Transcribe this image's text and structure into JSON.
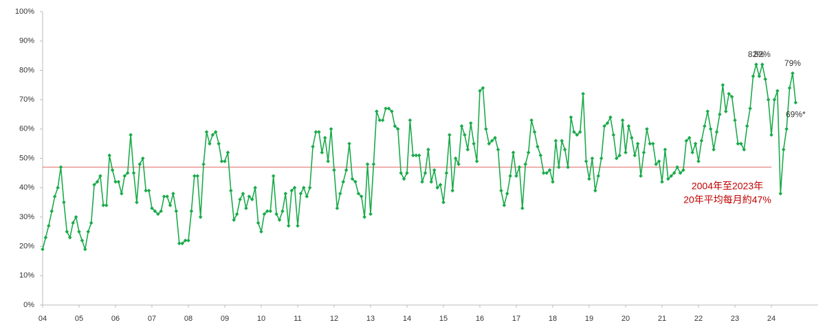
{
  "chart_data": {
    "type": "line",
    "categories": [
      "04",
      null,
      null,
      null,
      null,
      null,
      null,
      null,
      null,
      null,
      null,
      null,
      "05",
      null,
      null,
      null,
      null,
      null,
      null,
      null,
      null,
      null,
      null,
      null,
      "06",
      null,
      null,
      null,
      null,
      null,
      null,
      null,
      null,
      null,
      null,
      null,
      "07",
      null,
      null,
      null,
      null,
      null,
      null,
      null,
      null,
      null,
      null,
      null,
      "08",
      null,
      null,
      null,
      null,
      null,
      null,
      null,
      null,
      null,
      null,
      null,
      "09",
      null,
      null,
      null,
      null,
      null,
      null,
      null,
      null,
      null,
      null,
      null,
      "10",
      null,
      null,
      null,
      null,
      null,
      null,
      null,
      null,
      null,
      null,
      null,
      "11",
      null,
      null,
      null,
      null,
      null,
      null,
      null,
      null,
      null,
      null,
      null,
      "12",
      null,
      null,
      null,
      null,
      null,
      null,
      null,
      null,
      null,
      null,
      null,
      "13",
      null,
      null,
      null,
      null,
      null,
      null,
      null,
      null,
      null,
      null,
      null,
      "14",
      null,
      null,
      null,
      null,
      null,
      null,
      null,
      null,
      null,
      null,
      null,
      "15",
      null,
      null,
      null,
      null,
      null,
      null,
      null,
      null,
      null,
      null,
      null,
      "16",
      null,
      null,
      null,
      null,
      null,
      null,
      null,
      null,
      null,
      null,
      null,
      "17",
      null,
      null,
      null,
      null,
      null,
      null,
      null,
      null,
      null,
      null,
      null,
      "18",
      null,
      null,
      null,
      null,
      null,
      null,
      null,
      null,
      null,
      null,
      null,
      "19",
      null,
      null,
      null,
      null,
      null,
      null,
      null,
      null,
      null,
      null,
      null,
      "20",
      null,
      null,
      null,
      null,
      null,
      null,
      null,
      null,
      null,
      null,
      null,
      "21",
      null,
      null,
      null,
      null,
      null,
      null,
      null,
      null,
      null,
      null,
      null,
      "22",
      null,
      null,
      null,
      null,
      null,
      null,
      null,
      null,
      null,
      null,
      null,
      "23",
      null,
      null,
      null,
      null,
      null,
      null,
      null,
      null,
      null,
      null,
      null,
      "24",
      null,
      null,
      null,
      null,
      null,
      null,
      null,
      null
    ],
    "values": [
      19,
      23,
      27,
      32,
      37,
      40,
      47,
      35,
      25,
      23,
      28,
      30,
      25,
      22,
      19,
      25,
      28,
      41,
      42,
      44,
      34,
      34,
      51,
      46,
      42,
      42,
      38,
      44,
      45,
      58,
      45,
      35,
      48,
      50,
      39,
      39,
      33,
      32,
      31,
      32,
      37,
      37,
      34,
      38,
      32,
      21,
      21,
      22,
      22,
      32,
      44,
      44,
      30,
      48,
      59,
      55,
      58,
      59,
      55,
      49,
      49,
      52,
      39,
      29,
      31,
      36,
      38,
      33,
      37,
      36,
      40,
      28,
      25,
      31,
      32,
      32,
      44,
      31,
      29,
      32,
      38,
      27,
      39,
      40,
      27,
      38,
      40,
      37,
      40,
      54,
      59,
      59,
      52,
      57,
      49,
      60,
      46,
      33,
      38,
      42,
      46,
      55,
      43,
      42,
      38,
      37,
      30,
      48,
      31,
      48,
      66,
      63,
      63,
      67,
      67,
      66,
      61,
      60,
      45,
      43,
      45,
      63,
      51,
      51,
      51,
      42,
      45,
      53,
      42,
      46,
      40,
      41,
      35,
      45,
      58,
      39,
      50,
      48,
      61,
      58,
      53,
      62,
      55,
      49,
      73,
      74,
      60,
      55,
      56,
      57,
      53,
      39,
      34,
      38,
      44,
      52,
      44,
      47,
      33,
      48,
      52,
      63,
      59,
      54,
      51,
      45,
      45,
      46,
      42,
      56,
      47,
      56,
      53,
      47,
      64,
      59,
      58,
      59,
      72,
      49,
      43,
      50,
      39,
      44,
      50,
      61,
      62,
      64,
      58,
      50,
      51,
      63,
      52,
      61,
      57,
      51,
      55,
      44,
      52,
      60,
      55,
      55,
      48,
      49,
      42,
      53,
      43,
      44,
      45,
      47,
      45,
      46,
      56,
      57,
      52,
      55,
      49,
      56,
      61,
      66,
      60,
      53,
      59,
      65,
      75,
      66,
      72,
      71,
      63,
      55,
      55,
      53,
      61,
      67,
      78,
      82,
      78,
      82,
      77,
      70,
      58,
      70,
      73,
      38,
      53,
      60,
      74,
      79,
      69
    ],
    "value_labels": [
      null,
      null,
      null,
      null,
      null,
      null,
      null,
      null,
      null,
      null,
      null,
      null,
      null,
      null,
      null,
      null,
      null,
      null,
      null,
      null,
      null,
      null,
      null,
      null,
      null,
      null,
      null,
      null,
      null,
      null,
      null,
      null,
      null,
      null,
      null,
      null,
      null,
      null,
      null,
      null,
      null,
      null,
      null,
      null,
      null,
      null,
      null,
      null,
      null,
      null,
      null,
      null,
      null,
      null,
      null,
      null,
      null,
      null,
      null,
      null,
      null,
      null,
      null,
      null,
      null,
      null,
      null,
      null,
      null,
      null,
      null,
      null,
      null,
      null,
      null,
      null,
      null,
      null,
      null,
      null,
      null,
      null,
      null,
      null,
      null,
      null,
      null,
      null,
      null,
      null,
      null,
      null,
      null,
      null,
      null,
      null,
      null,
      null,
      null,
      null,
      null,
      null,
      null,
      null,
      null,
      null,
      null,
      null,
      null,
      null,
      null,
      null,
      null,
      null,
      null,
      null,
      null,
      null,
      null,
      null,
      null,
      null,
      null,
      null,
      null,
      null,
      null,
      null,
      null,
      null,
      null,
      null,
      null,
      null,
      null,
      null,
      null,
      null,
      null,
      null,
      null,
      null,
      null,
      null,
      null,
      null,
      null,
      null,
      null,
      null,
      null,
      null,
      null,
      null,
      null,
      null,
      null,
      null,
      null,
      null,
      null,
      null,
      null,
      null,
      null,
      null,
      null,
      null,
      null,
      null,
      null,
      null,
      null,
      null,
      null,
      null,
      null,
      null,
      null,
      null,
      null,
      null,
      null,
      null,
      null,
      null,
      null,
      null,
      null,
      null,
      null,
      null,
      null,
      null,
      null,
      null,
      null,
      null,
      null,
      null,
      null,
      null,
      null,
      null,
      null,
      null,
      null,
      null,
      null,
      null,
      null,
      null,
      null,
      null,
      null,
      null,
      null,
      null,
      null,
      null,
      null,
      null,
      null,
      null,
      null,
      null,
      null,
      null,
      null,
      null,
      null,
      null,
      null,
      null,
      null,
      "82%",
      null,
      "82%",
      null,
      null,
      null,
      null,
      null,
      null,
      null,
      null,
      null,
      "79%",
      "69%*"
    ],
    "color": "#1aaa4a",
    "ylim": [
      0,
      100
    ],
    "yticks": [
      {
        "value": 0,
        "label": "0%"
      },
      {
        "value": 10,
        "label": "10%"
      },
      {
        "value": 20,
        "label": "20%"
      },
      {
        "value": 30,
        "label": "30%"
      },
      {
        "value": 40,
        "label": "40%"
      },
      {
        "value": 50,
        "label": "50%"
      },
      {
        "value": 60,
        "label": "60%"
      },
      {
        "value": 70,
        "label": "70%"
      },
      {
        "value": 80,
        "label": "80%"
      },
      {
        "value": 90,
        "label": "90%"
      },
      {
        "value": 100,
        "label": "100%"
      }
    ],
    "average": {
      "value": 47,
      "label": [
        "2004年至2023年",
        "20年平均每月約47%"
      ],
      "color": "#e06666",
      "text_color": "#c00000"
    },
    "grid": false
  }
}
